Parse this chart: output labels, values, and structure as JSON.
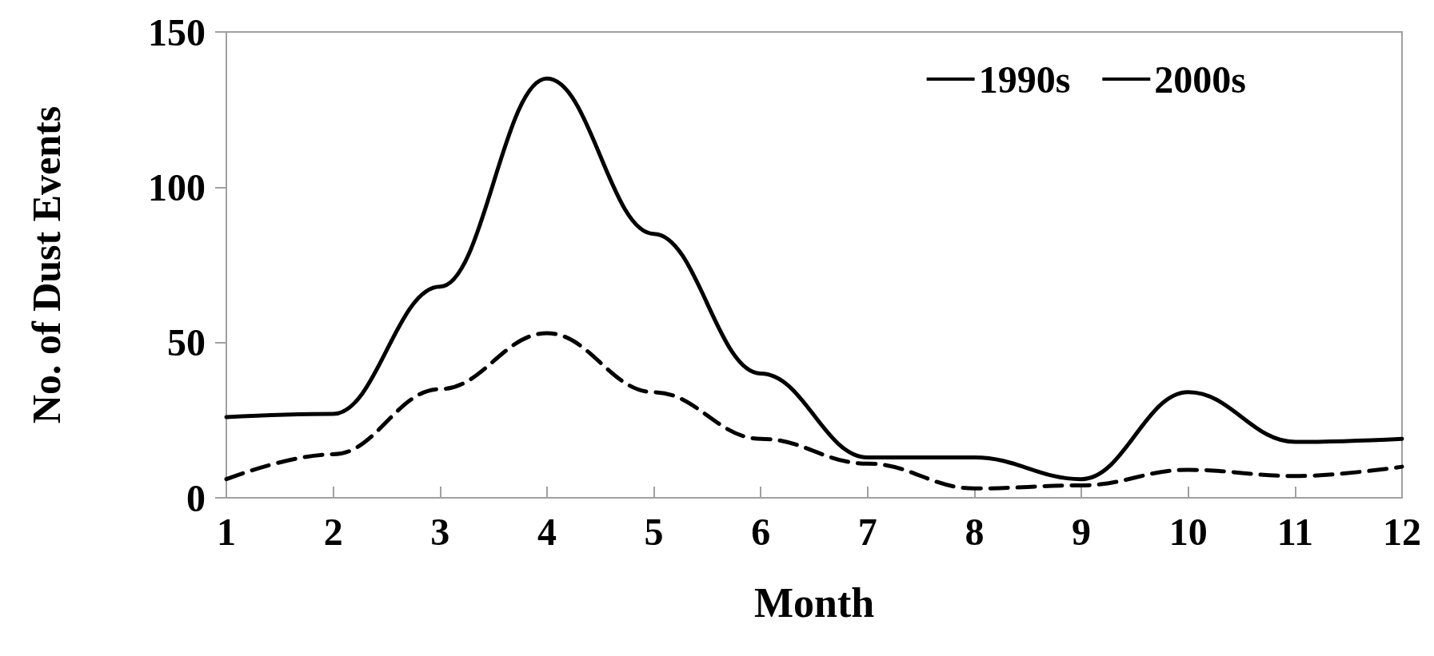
{
  "chart_data": {
    "type": "line",
    "xlabel": "Month",
    "ylabel": "No. of Dust Events",
    "x": [
      1,
      2,
      3,
      4,
      5,
      6,
      7,
      8,
      9,
      10,
      11,
      12
    ],
    "series": [
      {
        "name": "1990s",
        "color": "#000000",
        "line_style": "dashed",
        "values": [
          6,
          14,
          35,
          53,
          34,
          19,
          11,
          3,
          4,
          9,
          7,
          10
        ]
      },
      {
        "name": "2000s",
        "color": "#000000",
        "line_style": "solid",
        "values": [
          26,
          27,
          68,
          135,
          85,
          40,
          13,
          13,
          6,
          34,
          18,
          19
        ]
      }
    ],
    "xlim": [
      1,
      12
    ],
    "xticks": [
      1,
      2,
      3,
      4,
      5,
      6,
      7,
      8,
      9,
      10,
      11,
      12
    ],
    "ylim": [
      0,
      150
    ],
    "yticks": [
      0,
      50,
      100,
      150
    ],
    "grid": false,
    "legend": "top right",
    "marker": "none"
  }
}
